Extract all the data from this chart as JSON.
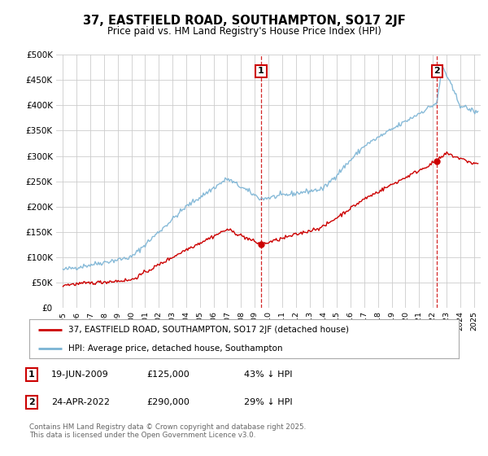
{
  "title": "37, EASTFIELD ROAD, SOUTHAMPTON, SO17 2JF",
  "subtitle": "Price paid vs. HM Land Registry's House Price Index (HPI)",
  "background_color": "#ffffff",
  "plot_bg_color": "#ffffff",
  "grid_color": "#cccccc",
  "hpi_color": "#7ab3d4",
  "price_color": "#cc0000",
  "marker_color": "#cc0000",
  "transaction1": {
    "date_x": 2009.46,
    "price": 125000,
    "label": "1"
  },
  "transaction2": {
    "date_x": 2022.31,
    "price": 290000,
    "label": "2"
  },
  "ylim": [
    0,
    500000
  ],
  "yticks": [
    0,
    50000,
    100000,
    150000,
    200000,
    250000,
    300000,
    350000,
    400000,
    450000,
    500000
  ],
  "ytick_labels": [
    "£0",
    "£50K",
    "£100K",
    "£150K",
    "£200K",
    "£250K",
    "£300K",
    "£350K",
    "£400K",
    "£450K",
    "£500K"
  ],
  "xlim": [
    1994.5,
    2025.5
  ],
  "xticks": [
    1995,
    1996,
    1997,
    1998,
    1999,
    2000,
    2001,
    2002,
    2003,
    2004,
    2005,
    2006,
    2007,
    2008,
    2009,
    2010,
    2011,
    2012,
    2013,
    2014,
    2015,
    2016,
    2017,
    2018,
    2019,
    2020,
    2021,
    2022,
    2023,
    2024,
    2025
  ],
  "legend_price_label": "37, EASTFIELD ROAD, SOUTHAMPTON, SO17 2JF (detached house)",
  "legend_hpi_label": "HPI: Average price, detached house, Southampton",
  "footnote": "Contains HM Land Registry data © Crown copyright and database right 2025.\nThis data is licensed under the Open Government Licence v3.0.",
  "ann1_date": "19-JUN-2009",
  "ann1_price": "£125,000",
  "ann1_hpi": "43% ↓ HPI",
  "ann2_date": "24-APR-2022",
  "ann2_price": "£290,000",
  "ann2_hpi": "29% ↓ HPI"
}
